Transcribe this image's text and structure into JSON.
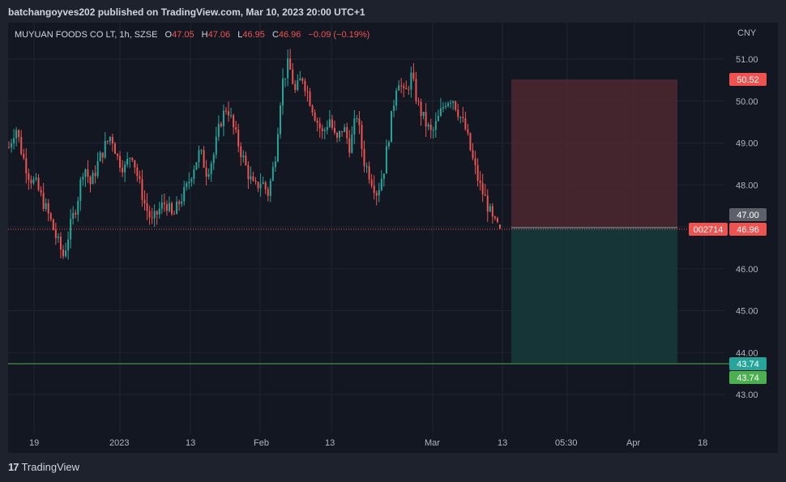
{
  "header": {
    "publisher": "batchangoyves202 published on TradingView.com, Mar 10, 2023 20:00 UTC+1"
  },
  "legend": {
    "symbol": "MUYUAN FOODS CO LT, 1h, SZSE",
    "o_label": "O",
    "o_value": "47.05",
    "h_label": "H",
    "h_value": "47.06",
    "l_label": "L",
    "l_value": "46.95",
    "c_label": "C",
    "c_value": "46.96",
    "change": "−0.09 (−0.19%)"
  },
  "currency": "CNY",
  "price_axis": {
    "ticks": [
      "51.00",
      "50.00",
      "49.00",
      "48.00",
      "47.00",
      "46.00",
      "45.00",
      "44.00",
      "43.00"
    ],
    "tick_values": [
      51,
      50,
      49,
      48,
      47,
      46,
      45,
      44,
      43
    ]
  },
  "time_axis": {
    "labels": [
      "19",
      "2023",
      "13",
      "Feb",
      "13",
      "Mar",
      "13",
      "05:30",
      "Apr",
      "18"
    ]
  },
  "badges": {
    "target": "50.52",
    "entry": "47.00",
    "symbol_code": "002714",
    "last": "46.96",
    "stop_top": "43.74",
    "stop_bottom": "43.74"
  },
  "colors": {
    "up": "#26a69a",
    "down": "#ef5350",
    "green_line": "#4caf50",
    "target_zone": "#4a2730",
    "stop_zone": "#16393a"
  },
  "footer": {
    "brand": "TradingView",
    "logo_glyph": "17"
  },
  "chart_data": {
    "type": "candlestick",
    "symbol": "MUYUAN FOODS CO LT",
    "interval": "1h",
    "exchange": "SZSE",
    "currency": "CNY",
    "ylim": [
      42.2,
      51.8
    ],
    "last_price": 46.96,
    "horizontal_line": 43.74,
    "position": {
      "entry": 47.0,
      "target": 50.52,
      "stop": 43.74
    },
    "ohlc_last": {
      "open": 47.05,
      "high": 47.06,
      "low": 46.95,
      "close": 46.96
    },
    "close_path": [
      48.9,
      49.4,
      48.7,
      48.2,
      48.0,
      47.6,
      47.2,
      46.7,
      46.3,
      47.0,
      47.6,
      48.5,
      48.0,
      48.5,
      48.9,
      49.2,
      48.6,
      48.4,
      48.8,
      48.1,
      47.5,
      47.1,
      47.4,
      47.6,
      47.2,
      47.6,
      47.9,
      48.4,
      48.8,
      48.3,
      48.7,
      49.5,
      49.9,
      49.3,
      48.8,
      48.3,
      47.9,
      48.1,
      47.8,
      48.6,
      50.4,
      50.9,
      50.2,
      50.6,
      50.1,
      49.6,
      49.2,
      49.6,
      49.0,
      49.4,
      48.9,
      49.7,
      48.6,
      48.2,
      47.8,
      48.4,
      49.5,
      50.6,
      50.1,
      50.6,
      49.9,
      49.5,
      49.2,
      49.6,
      50.0,
      50.1,
      49.7,
      49.3,
      48.6,
      48.0,
      47.6,
      47.1,
      46.96
    ]
  }
}
